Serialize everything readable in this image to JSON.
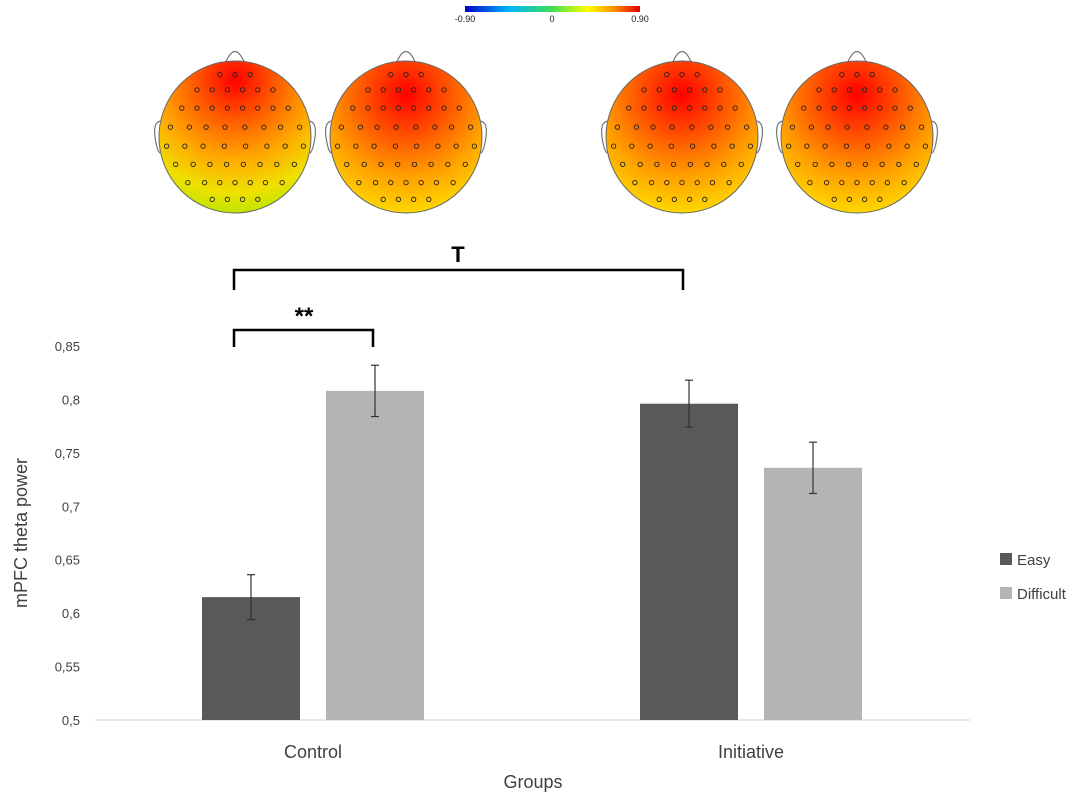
{
  "colorbar": {
    "min_label": "-0.90",
    "mid_label": "0",
    "max_label": "0.90"
  },
  "chart_data": {
    "type": "bar",
    "categories": [
      "Control",
      "Initiative"
    ],
    "series": [
      {
        "name": "Easy",
        "values": [
          0.615,
          0.796
        ],
        "errors": [
          0.021,
          0.022
        ],
        "color": "#595959"
      },
      {
        "name": "Difficult",
        "values": [
          0.808,
          0.736
        ],
        "errors": [
          0.024,
          0.024
        ],
        "color": "#b4b4b4"
      }
    ],
    "xlabel": "Groups",
    "ylabel": "mPFC theta power",
    "ylim": [
      0.5,
      0.85
    ],
    "yticks": [
      "0,5",
      "0,55",
      "0,6",
      "0,65",
      "0,7",
      "0,75",
      "0,8",
      "0,85"
    ],
    "grid": false,
    "legend_position": "right",
    "annotations": [
      {
        "label": "**",
        "from": "Control Easy",
        "to": "Control Difficult"
      },
      {
        "label": "T",
        "from": "Control Easy",
        "to": "Initiative Easy"
      }
    ]
  }
}
